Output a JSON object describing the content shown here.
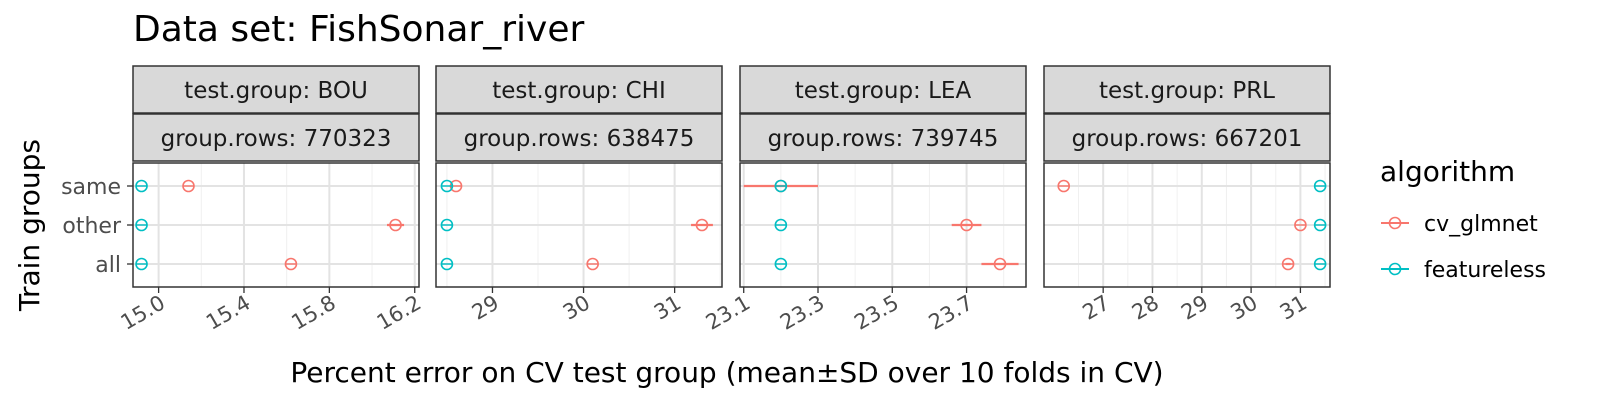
{
  "chart_data": {
    "type": "scatter",
    "title": "Data set: FishSonar_river",
    "xlabel": "Percent error on CV test group (mean±SD over 10 folds in CV)",
    "ylabel": "Train groups",
    "y_categories": [
      "same",
      "other",
      "all"
    ],
    "legend": {
      "title": "algorithm",
      "position": "right",
      "entries": [
        {
          "name": "cv_glmnet",
          "color": "#F8766D"
        },
        {
          "name": "featureless",
          "color": "#00BFC4"
        }
      ]
    },
    "grid": true,
    "panels": [
      {
        "strip_top": "test.group: BOU",
        "strip_bottom": "group.rows: 770323",
        "xlim": [
          14.88,
          16.22
        ],
        "xticks": [
          15.0,
          15.4,
          15.8,
          16.2
        ],
        "xtick_labels": [
          "15.0",
          "15.4",
          "15.8",
          "16.2"
        ],
        "series": [
          {
            "name": "cv_glmnet",
            "points": [
              {
                "y": "same",
                "x": 15.14,
                "sd": 0.0
              },
              {
                "y": "other",
                "x": 16.11,
                "sd": 0.04
              },
              {
                "y": "all",
                "x": 15.62,
                "sd": 0.0
              }
            ]
          },
          {
            "name": "featureless",
            "points": [
              {
                "y": "same",
                "x": 14.92,
                "sd": 0.0
              },
              {
                "y": "other",
                "x": 14.92,
                "sd": 0.0
              },
              {
                "y": "all",
                "x": 14.92,
                "sd": 0.0
              }
            ]
          }
        ]
      },
      {
        "strip_top": "test.group: CHI",
        "strip_bottom": "group.rows: 638475",
        "xlim": [
          28.38,
          31.52
        ],
        "xticks": [
          29,
          30,
          31
        ],
        "xtick_labels": [
          "29",
          "30",
          "31"
        ],
        "series": [
          {
            "name": "cv_glmnet",
            "points": [
              {
                "y": "same",
                "x": 28.6,
                "sd": 0.0
              },
              {
                "y": "other",
                "x": 31.3,
                "sd": 0.12
              },
              {
                "y": "all",
                "x": 30.1,
                "sd": 0.0
              }
            ]
          },
          {
            "name": "featureless",
            "points": [
              {
                "y": "same",
                "x": 28.5,
                "sd": 0.0
              },
              {
                "y": "other",
                "x": 28.5,
                "sd": 0.0
              },
              {
                "y": "all",
                "x": 28.5,
                "sd": 0.0
              }
            ]
          }
        ]
      },
      {
        "strip_top": "test.group: LEA",
        "strip_bottom": "group.rows: 739745",
        "xlim": [
          23.09,
          23.86
        ],
        "xticks": [
          23.1,
          23.3,
          23.5,
          23.7
        ],
        "xtick_labels": [
          "23.1",
          "23.3",
          "23.5",
          "23.7"
        ],
        "series": [
          {
            "name": "cv_glmnet",
            "points": [
              {
                "y": "same",
                "x": 23.2,
                "sd": 0.1
              },
              {
                "y": "other",
                "x": 23.7,
                "sd": 0.04
              },
              {
                "y": "all",
                "x": 23.79,
                "sd": 0.05
              }
            ]
          },
          {
            "name": "featureless",
            "points": [
              {
                "y": "same",
                "x": 23.2,
                "sd": 0.0
              },
              {
                "y": "other",
                "x": 23.2,
                "sd": 0.0
              },
              {
                "y": "all",
                "x": 23.2,
                "sd": 0.0
              }
            ]
          }
        ]
      },
      {
        "strip_top": "test.group: PRL",
        "strip_bottom": "group.rows: 667201",
        "xlim": [
          25.8,
          31.6
        ],
        "xticks": [
          27,
          28,
          29,
          30,
          31
        ],
        "xtick_labels": [
          "27",
          "28",
          "29",
          "30",
          "31"
        ],
        "series": [
          {
            "name": "cv_glmnet",
            "points": [
              {
                "y": "same",
                "x": 26.2,
                "sd": 0.0
              },
              {
                "y": "other",
                "x": 31.0,
                "sd": 0.0
              },
              {
                "y": "all",
                "x": 30.75,
                "sd": 0.05
              }
            ]
          },
          {
            "name": "featureless",
            "points": [
              {
                "y": "same",
                "x": 31.4,
                "sd": 0.0
              },
              {
                "y": "other",
                "x": 31.4,
                "sd": 0.0
              },
              {
                "y": "all",
                "x": 31.4,
                "sd": 0.0
              }
            ]
          }
        ]
      }
    ]
  }
}
